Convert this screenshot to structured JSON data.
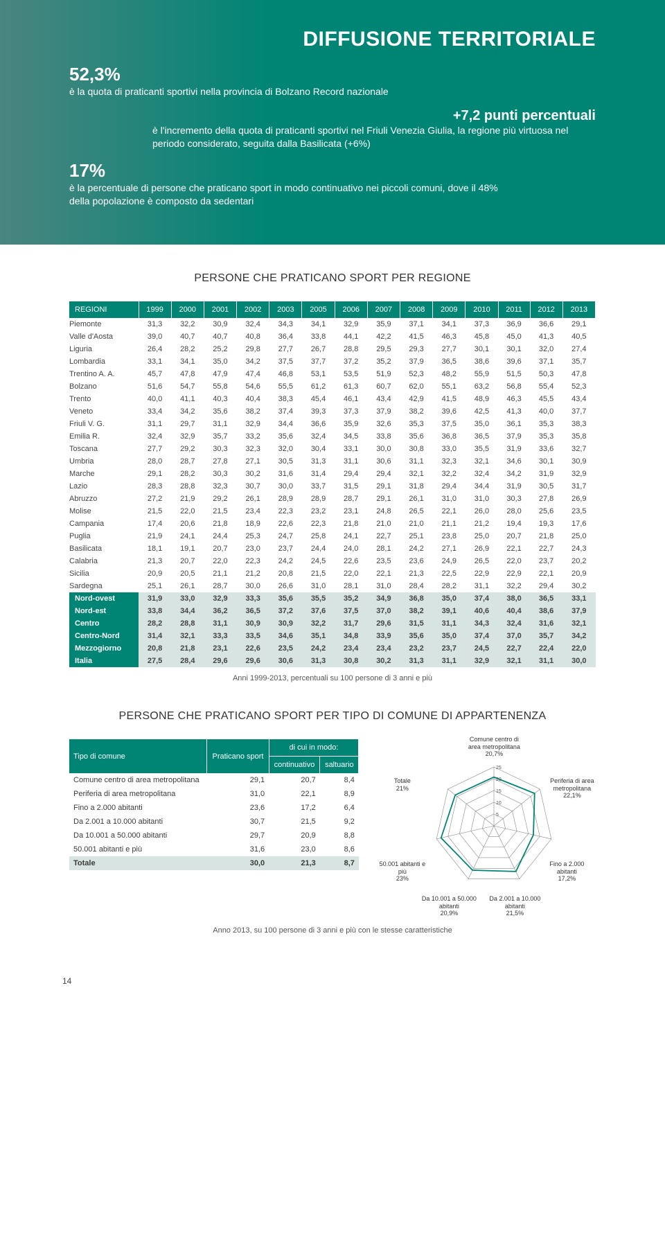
{
  "hero": {
    "title": "DIFFUSIONE TERRITORIALE",
    "s1": "52,3%",
    "s1_text": "è la quota di praticanti sportivi nella provincia di Bolzano Record nazionale",
    "s2": "+7,2 punti percentuali",
    "s2_text": "è l'incremento della quota di praticanti sportivi nel Friuli Venezia Giulia, la regione più virtuosa nel periodo considerato, seguita dalla Basilicata (+6%)",
    "s3": "17%",
    "s3_text": "è la percentuale di persone che praticano sport in modo continuativo nei piccoli comuni, dove il 48% della popolazione è composto da sedentari"
  },
  "section1_title": "PERSONE CHE PRATICANO SPORT PER REGIONE",
  "table1": {
    "head": [
      "REGIONI",
      "1999",
      "2000",
      "2001",
      "2002",
      "2003",
      "2005",
      "2006",
      "2007",
      "2008",
      "2009",
      "2010",
      "2011",
      "2012",
      "2013"
    ],
    "rows": [
      [
        "Piemonte",
        "31,3",
        "32,2",
        "30,9",
        "32,4",
        "34,3",
        "34,1",
        "32,9",
        "35,9",
        "37,1",
        "34,1",
        "37,3",
        "36,9",
        "36,6",
        "29,1"
      ],
      [
        "Valle d'Aosta",
        "39,0",
        "40,7",
        "40,7",
        "40,8",
        "36,4",
        "33,8",
        "44,1",
        "42,2",
        "41,5",
        "46,3",
        "45,8",
        "45,0",
        "41,3",
        "40,5"
      ],
      [
        "Liguria",
        "26,4",
        "28,2",
        "25,2",
        "29,8",
        "27,7",
        "26,7",
        "28,8",
        "29,5",
        "29,3",
        "27,7",
        "30,1",
        "30,1",
        "32,0",
        "27,4"
      ],
      [
        "Lombardia",
        "33,1",
        "34,1",
        "35,0",
        "34,2",
        "37,5",
        "37,7",
        "37,2",
        "35,2",
        "37,9",
        "36,5",
        "38,6",
        "39,6",
        "37,1",
        "35,7"
      ],
      [
        "Trentino A. A.",
        "45,7",
        "47,8",
        "47,9",
        "47,4",
        "46,8",
        "53,1",
        "53,5",
        "51,9",
        "52,3",
        "48,2",
        "55,9",
        "51,5",
        "50,3",
        "47,8"
      ],
      [
        "Bolzano",
        "51,6",
        "54,7",
        "55,8",
        "54,6",
        "55,5",
        "61,2",
        "61,3",
        "60,7",
        "62,0",
        "55,1",
        "63,2",
        "56,8",
        "55,4",
        "52,3"
      ],
      [
        "Trento",
        "40,0",
        "41,1",
        "40,3",
        "40,4",
        "38,3",
        "45,4",
        "46,1",
        "43,4",
        "42,9",
        "41,5",
        "48,9",
        "46,3",
        "45,5",
        "43,4"
      ],
      [
        "Veneto",
        "33,4",
        "34,2",
        "35,6",
        "38,2",
        "37,4",
        "39,3",
        "37,3",
        "37,9",
        "38,2",
        "39,6",
        "42,5",
        "41,3",
        "40,0",
        "37,7"
      ],
      [
        "Friuli V. G.",
        "31,1",
        "29,7",
        "31,1",
        "32,9",
        "34,4",
        "36,6",
        "35,9",
        "32,6",
        "35,3",
        "37,5",
        "35,0",
        "36,1",
        "35,3",
        "38,3"
      ],
      [
        "Emilia R.",
        "32,4",
        "32,9",
        "35,7",
        "33,2",
        "35,6",
        "32,4",
        "34,5",
        "33,8",
        "35,6",
        "36,8",
        "36,5",
        "37,9",
        "35,3",
        "35,8"
      ],
      [
        "Toscana",
        "27,7",
        "29,2",
        "30,3",
        "32,3",
        "32,0",
        "30,4",
        "33,1",
        "30,0",
        "30,8",
        "33,0",
        "35,5",
        "31,9",
        "33,6",
        "32,7"
      ],
      [
        "Umbria",
        "28,0",
        "28,7",
        "27,8",
        "27,1",
        "30,5",
        "31,3",
        "31,1",
        "30,6",
        "31,1",
        "32,3",
        "32,1",
        "34,6",
        "30,1",
        "30,9"
      ],
      [
        "Marche",
        "29,1",
        "28,2",
        "30,3",
        "30,2",
        "31,6",
        "31,4",
        "29,4",
        "29,4",
        "32,1",
        "32,2",
        "32,4",
        "34,2",
        "31,9",
        "32,9"
      ],
      [
        "Lazio",
        "28,3",
        "28,8",
        "32,3",
        "30,7",
        "30,0",
        "33,7",
        "31,5",
        "29,1",
        "31,8",
        "29,4",
        "34,4",
        "31,9",
        "30,5",
        "31,7"
      ],
      [
        "Abruzzo",
        "27,2",
        "21,9",
        "29,2",
        "26,1",
        "28,9",
        "28,9",
        "28,7",
        "29,1",
        "26,1",
        "31,0",
        "31,0",
        "30,3",
        "27,8",
        "26,9"
      ],
      [
        "Molise",
        "21,5",
        "22,0",
        "21,5",
        "23,4",
        "22,3",
        "23,2",
        "23,1",
        "24,8",
        "26,5",
        "22,1",
        "26,0",
        "28,0",
        "25,6",
        "23,5"
      ],
      [
        "Campania",
        "17,4",
        "20,6",
        "21,8",
        "18,9",
        "22,6",
        "22,3",
        "21,8",
        "21,0",
        "21,0",
        "21,1",
        "21,2",
        "19,4",
        "19,3",
        "17,6"
      ],
      [
        "Puglia",
        "21,9",
        "24,1",
        "24,4",
        "25,3",
        "24,7",
        "25,8",
        "24,1",
        "22,7",
        "25,1",
        "23,8",
        "25,0",
        "20,7",
        "21,8",
        "25,0"
      ],
      [
        "Basilicata",
        "18,1",
        "19,1",
        "20,7",
        "23,0",
        "23,7",
        "24,4",
        "24,0",
        "28,1",
        "24,2",
        "27,1",
        "26,9",
        "22,1",
        "22,7",
        "24,3"
      ],
      [
        "Calabria",
        "21,3",
        "20,7",
        "22,0",
        "22,3",
        "24,2",
        "24,5",
        "22,6",
        "23,5",
        "23,6",
        "24,9",
        "26,5",
        "22,0",
        "23,7",
        "20,2"
      ],
      [
        "Sicilia",
        "20,9",
        "20,5",
        "21,1",
        "21,2",
        "20,8",
        "21,5",
        "22,0",
        "22,1",
        "21,3",
        "22,5",
        "22,9",
        "22,9",
        "22,1",
        "20,9"
      ],
      [
        "Sardegna",
        "25,1",
        "26,1",
        "28,7",
        "30,0",
        "26,6",
        "31,0",
        "28,1",
        "31,0",
        "28,4",
        "28,2",
        "31,1",
        "32,2",
        "29,4",
        "30,2"
      ]
    ],
    "bold_rows": [
      [
        "Nord-ovest",
        "31,9",
        "33,0",
        "32,9",
        "33,3",
        "35,6",
        "35,5",
        "35,2",
        "34,9",
        "36,8",
        "35,0",
        "37,4",
        "38,0",
        "36,5",
        "33,1"
      ],
      [
        "Nord-est",
        "33,8",
        "34,4",
        "36,2",
        "36,5",
        "37,2",
        "37,6",
        "37,5",
        "37,0",
        "38,2",
        "39,1",
        "40,6",
        "40,4",
        "38,6",
        "37,9"
      ],
      [
        "Centro",
        "28,2",
        "28,8",
        "31,1",
        "30,9",
        "30,9",
        "32,2",
        "31,7",
        "29,6",
        "31,5",
        "31,1",
        "34,3",
        "32,4",
        "31,6",
        "32,1"
      ],
      [
        "Centro-Nord",
        "31,4",
        "32,1",
        "33,3",
        "33,5",
        "34,6",
        "35,1",
        "34,8",
        "33,9",
        "35,6",
        "35,0",
        "37,4",
        "37,0",
        "35,7",
        "34,2"
      ],
      [
        "Mezzogiorno",
        "20,8",
        "21,8",
        "23,1",
        "22,6",
        "23,5",
        "24,2",
        "23,4",
        "23,4",
        "23,2",
        "23,7",
        "24,5",
        "22,7",
        "22,4",
        "22,0"
      ],
      [
        "Italia",
        "27,5",
        "28,4",
        "29,6",
        "29,6",
        "30,6",
        "31,3",
        "30,8",
        "30,2",
        "31,3",
        "31,1",
        "32,9",
        "32,1",
        "31,1",
        "30,0"
      ]
    ],
    "caption": "Anni 1999-2013, percentuali su 100 persone di 3 anni e più"
  },
  "section2_title": "PERSONE CHE PRATICANO SPORT PER TIPO DI COMUNE DI APPARTENENZA",
  "table2": {
    "head_l": "Tipo di comune",
    "head_c1": "Praticano sport",
    "head_c2": "di cui in modo:",
    "head_sub1": "continuativo",
    "head_sub2": "saltuario",
    "rows": [
      [
        "Comune centro di area metropolitana",
        "29,1",
        "20,7",
        "8,4"
      ],
      [
        "Periferia di area metropolitana",
        "31,0",
        "22,1",
        "8,9"
      ],
      [
        "Fino a 2.000 abitanti",
        "23,6",
        "17,2",
        "6,4"
      ],
      [
        "Da 2.001 a 10.000 abitanti",
        "30,7",
        "21,5",
        "9,2"
      ],
      [
        "Da 10.001 a 50.000 abitanti",
        "29,7",
        "20,9",
        "8,8"
      ],
      [
        "50.001 abitanti e più",
        "31,6",
        "23,0",
        "8,6"
      ],
      [
        "Totale",
        "30,0",
        "21,3",
        "8,7"
      ]
    ]
  },
  "radar": {
    "labels": [
      {
        "txt": "Comune centro di area metropolitana",
        "val": "20,7%"
      },
      {
        "txt": "Periferia di area metropolitana",
        "val": "22,1%"
      },
      {
        "txt": "Fino a 2.000 abitanti",
        "val": "17,2%"
      },
      {
        "txt": "Da 2.001 a 10.000 abitanti",
        "val": "21,5%"
      },
      {
        "txt": "Da 10.001 a 50.000 abitanti",
        "val": "20,9%"
      },
      {
        "txt": "50.001 abitanti e più",
        "val": "23%"
      },
      {
        "txt": "Totale",
        "val": "21%"
      }
    ],
    "ticks": [
      "5",
      "10",
      "15",
      "20",
      "25"
    ],
    "grid_color": "#888",
    "line_color": "#008575",
    "values": [
      20.7,
      22.1,
      17.2,
      21.5,
      20.9,
      23,
      21
    ],
    "max": 25
  },
  "caption2": "Anno 2013, su 100 persone di 3 anni e più con le stesse caratteristiche",
  "pagenum": "14"
}
